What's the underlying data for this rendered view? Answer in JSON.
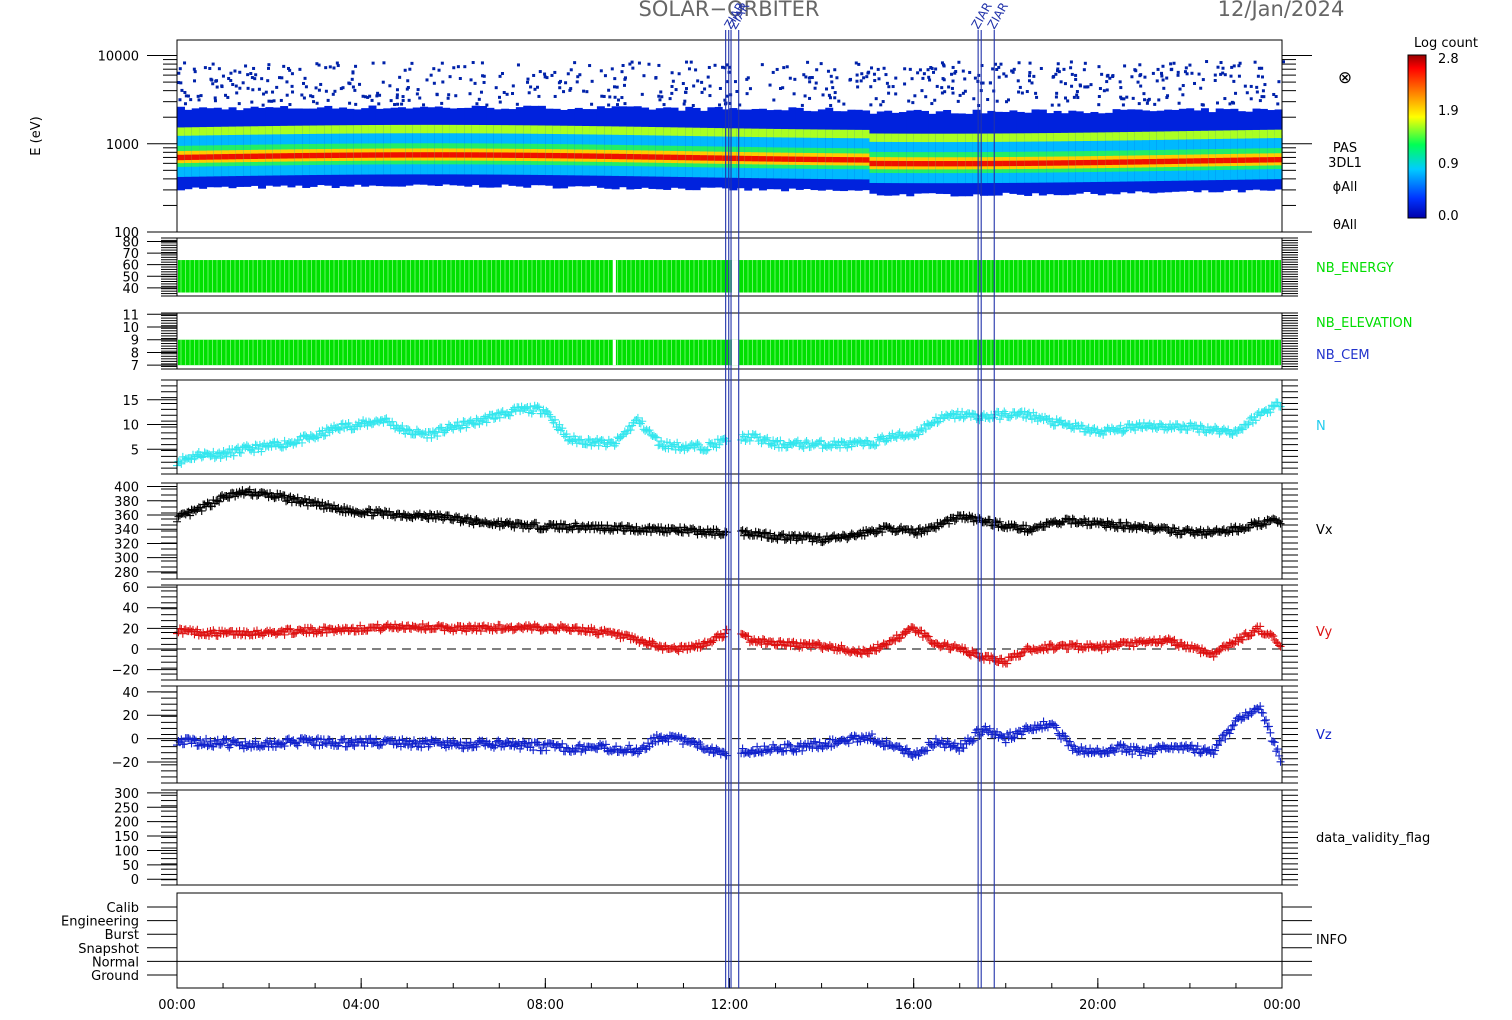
{
  "header": {
    "mission": "SOLAR−ORBITER",
    "date": "12/Jan/2024"
  },
  "event_marks": [
    {
      "text": "ZIAR",
      "x": "12:02"
    },
    {
      "text": "ZIAR",
      "x": "12:08"
    },
    {
      "text": "ZIAR",
      "x": "17:24"
    },
    {
      "text": "ZIAR",
      "x": "17:45"
    }
  ],
  "event_lines_x": [
    "11:55",
    "11:59",
    "12:02",
    "12:12",
    "17:24",
    "17:28",
    "17:45"
  ],
  "colors": {
    "green": "#00e000",
    "cyan": "#33e6ee",
    "black": "#000000",
    "red": "#dd1111",
    "blue": "#1122cc",
    "event": "#2233aa"
  },
  "colorbar": {
    "title": "Log count",
    "ticks": [
      "2.8",
      "1.9",
      "0.9",
      "0.0"
    ],
    "range": [
      0.0,
      2.8
    ]
  },
  "xaxis": {
    "ticks": [
      "00:00",
      "04:00",
      "08:00",
      "12:00",
      "16:00",
      "20:00",
      "00:00"
    ],
    "range_hours": [
      0,
      24
    ]
  },
  "panels": {
    "spectrogram": {
      "ylabel": "E (eV)",
      "yticks": [
        "10000",
        "1000",
        "100"
      ],
      "ylim": [
        100,
        15000
      ],
      "scale": "log",
      "labels": [
        "PAS",
        "3DL1",
        "ϕAll",
        "θAll"
      ],
      "extra_label": "⊗"
    },
    "energy": {
      "label": "NB_ENERGY",
      "yticks": [
        "80",
        "70",
        "60",
        "50",
        "40"
      ],
      "ylim": [
        33,
        83
      ],
      "band": [
        36,
        64
      ],
      "gap_at": "09:30"
    },
    "elev": {
      "label_1": "NB_ELEVATION",
      "label_2": "NB_CEM",
      "yticks": [
        "11",
        "10",
        "9",
        "8",
        "7"
      ],
      "ylim": [
        6.7,
        11.1
      ],
      "band": [
        7,
        9
      ],
      "gap_at": "09:30"
    },
    "density": {
      "label": "N",
      "yticks": [
        "15",
        "10",
        "5"
      ],
      "ylim": [
        0,
        19
      ]
    },
    "vx": {
      "label": "Vx",
      "yticks": [
        "400",
        "380",
        "360",
        "340",
        "320",
        "300",
        "280"
      ],
      "ylim": [
        270,
        405
      ]
    },
    "vy": {
      "label": "Vy",
      "yticks": [
        "60",
        "40",
        "20",
        "0",
        "−20"
      ],
      "ylim": [
        -30,
        62
      ]
    },
    "vz": {
      "label": "Vz",
      "yticks": [
        "40",
        "20",
        "0",
        "−20"
      ],
      "ylim": [
        -38,
        45
      ]
    },
    "validity": {
      "label": "data_validity_flag",
      "yticks": [
        "300",
        "250",
        "200",
        "150",
        "100",
        "50",
        "0"
      ],
      "ylim": [
        -20,
        310
      ]
    },
    "info": {
      "label": "INFO",
      "levels": [
        "Calib",
        "Engineering",
        "Burst",
        "Snapshot",
        "Normal",
        "Ground"
      ],
      "current_level": "Normal"
    }
  },
  "chart_data": {
    "type": "line",
    "x_unit": "hours of 12/Jan/2024",
    "series": [
      {
        "name": "N",
        "x": [
          0.0,
          0.5,
          1.0,
          1.5,
          2.0,
          2.5,
          3.0,
          3.5,
          4.0,
          4.5,
          5.0,
          5.5,
          6.0,
          6.5,
          7.0,
          7.5,
          8.0,
          8.5,
          9.0,
          9.5,
          10.0,
          10.5,
          11.0,
          11.5,
          12.0,
          12.5,
          13.0,
          13.5,
          14.0,
          14.5,
          15.0,
          15.5,
          16.0,
          16.5,
          17.0,
          17.5,
          18.0,
          18.5,
          19.0,
          19.5,
          20.0,
          20.5,
          21.0,
          21.5,
          22.0,
          22.5,
          23.0,
          23.5,
          24.0
        ],
        "y": [
          2.5,
          4,
          4,
          5,
          5.5,
          6.5,
          7.5,
          9.5,
          10,
          11,
          8.5,
          8,
          9.5,
          10.5,
          12,
          13,
          13,
          7,
          6.5,
          6,
          11,
          6,
          5.5,
          5.5,
          7,
          7.5,
          6,
          6,
          6,
          6,
          6,
          7.5,
          8,
          11,
          12,
          11.5,
          12,
          12,
          10.5,
          9.5,
          8.5,
          9,
          10,
          9.5,
          9.5,
          9,
          8.5,
          12,
          14.5
        ]
      },
      {
        "name": "Vx",
        "x": [
          0.0,
          0.5,
          1.0,
          1.5,
          2.0,
          2.5,
          3.0,
          3.5,
          4.0,
          4.5,
          5.0,
          5.5,
          6.0,
          6.5,
          7.0,
          7.5,
          8.0,
          8.5,
          9.0,
          9.5,
          10.0,
          10.5,
          11.0,
          11.5,
          12.0,
          12.5,
          13.0,
          13.5,
          14.0,
          14.5,
          15.0,
          15.5,
          16.0,
          16.5,
          17.0,
          17.5,
          18.0,
          18.5,
          19.0,
          19.5,
          20.0,
          20.5,
          21.0,
          21.5,
          22.0,
          22.5,
          23.0,
          23.5,
          24.0
        ],
        "y": [
          355,
          368,
          385,
          392,
          388,
          382,
          375,
          368,
          365,
          362,
          360,
          358,
          356,
          350,
          348,
          345,
          344,
          344,
          343,
          342,
          340,
          340,
          338,
          336,
          335,
          335,
          330,
          328,
          326,
          328,
          336,
          342,
          335,
          345,
          358,
          352,
          345,
          340,
          348,
          352,
          348,
          345,
          344,
          338,
          336,
          335,
          340,
          348,
          352
        ]
      },
      {
        "name": "Vy",
        "x": [
          0.0,
          0.5,
          1.0,
          1.5,
          2.0,
          2.5,
          3.0,
          3.5,
          4.0,
          4.5,
          5.0,
          5.5,
          6.0,
          6.5,
          7.0,
          7.5,
          8.0,
          8.5,
          9.0,
          9.5,
          10.0,
          10.5,
          11.0,
          11.5,
          12.0,
          12.5,
          13.0,
          13.5,
          14.0,
          14.5,
          15.0,
          15.5,
          16.0,
          16.5,
          17.0,
          17.5,
          18.0,
          18.5,
          19.0,
          19.5,
          20.0,
          20.5,
          21.0,
          21.5,
          22.0,
          22.5,
          23.0,
          23.5,
          24.0
        ],
        "y": [
          18,
          16,
          15,
          16,
          16,
          17,
          18,
          19,
          20,
          21,
          22,
          21,
          20,
          20,
          21,
          20,
          21,
          20,
          18,
          14,
          8,
          2,
          0,
          5,
          18,
          8,
          6,
          4,
          3,
          0,
          -4,
          8,
          20,
          5,
          0,
          -8,
          -12,
          0,
          2,
          3,
          1,
          4,
          6,
          8,
          2,
          -5,
          8,
          20,
          4
        ]
      },
      {
        "name": "Vz",
        "x": [
          0.0,
          0.5,
          1.0,
          1.5,
          2.0,
          2.5,
          3.0,
          3.5,
          4.0,
          4.5,
          5.0,
          5.5,
          6.0,
          6.5,
          7.0,
          7.5,
          8.0,
          8.5,
          9.0,
          9.5,
          10.0,
          10.5,
          11.0,
          11.5,
          12.0,
          12.5,
          13.0,
          13.5,
          14.0,
          14.5,
          15.0,
          15.5,
          16.0,
          16.5,
          17.0,
          17.5,
          18.0,
          18.5,
          19.0,
          19.5,
          20.0,
          20.5,
          21.0,
          21.5,
          22.0,
          22.5,
          23.0,
          23.5,
          24.0
        ],
        "y": [
          -2,
          -3,
          -4,
          -5,
          -4,
          -3,
          -3,
          -4,
          -3,
          -3,
          -4,
          -4,
          -5,
          -5,
          -5,
          -6,
          -7,
          -8,
          -8,
          -8,
          -10,
          2,
          -2,
          -8,
          -12,
          -10,
          -8,
          -8,
          -5,
          -2,
          2,
          -6,
          -14,
          -2,
          -8,
          8,
          0,
          10,
          12,
          -10,
          -12,
          -8,
          -12,
          -6,
          -8,
          -12,
          15,
          28,
          -20
        ]
      }
    ]
  }
}
